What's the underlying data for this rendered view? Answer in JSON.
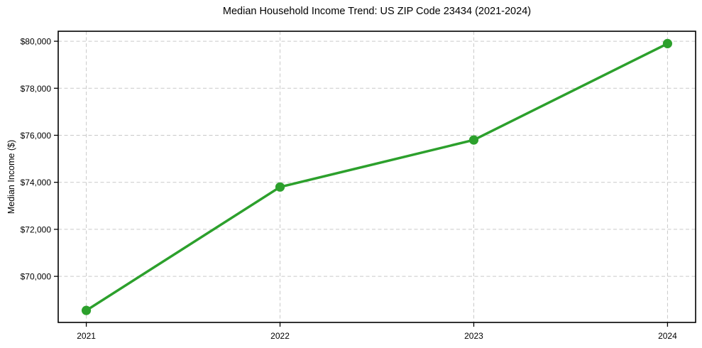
{
  "figure": {
    "background": "#ffffff",
    "text_color": "#000000"
  },
  "chart_data": {
    "type": "line",
    "title": "Median Household Income Trend: US ZIP Code 23434 (2021-2024)",
    "xlabel": "",
    "ylabel": "Median Income ($)",
    "x": [
      2021,
      2022,
      2023,
      2024
    ],
    "categories": [
      "2021",
      "2022",
      "2023",
      "2024"
    ],
    "values": [
      68550,
      73800,
      75800,
      79900
    ],
    "series": [
      {
        "name": "Median Household Income",
        "values": [
          68550,
          73800,
          75800,
          79900
        ]
      }
    ],
    "xlim": [
      2020.855,
      2024.145
    ],
    "ylim": [
      68040,
      80425
    ],
    "yticks": [
      70000,
      72000,
      74000,
      76000,
      78000,
      80000
    ],
    "ytick_labels": [
      "$70,000",
      "$72,000",
      "$74,000",
      "$76,000",
      "$78,000",
      "$80,000"
    ],
    "xticks": [
      2021,
      2022,
      2023,
      2024
    ],
    "xtick_labels": [
      "2021",
      "2022",
      "2023",
      "2024"
    ],
    "grid": true,
    "grid_color": "#c9c9c9",
    "grid_style": "dashed",
    "axes_box": true,
    "spine_color": "#000000",
    "line_color": "#2ca02c",
    "marker": "circle",
    "marker_radius": 6.6,
    "line_width": 3.5,
    "legend_position": "none"
  }
}
